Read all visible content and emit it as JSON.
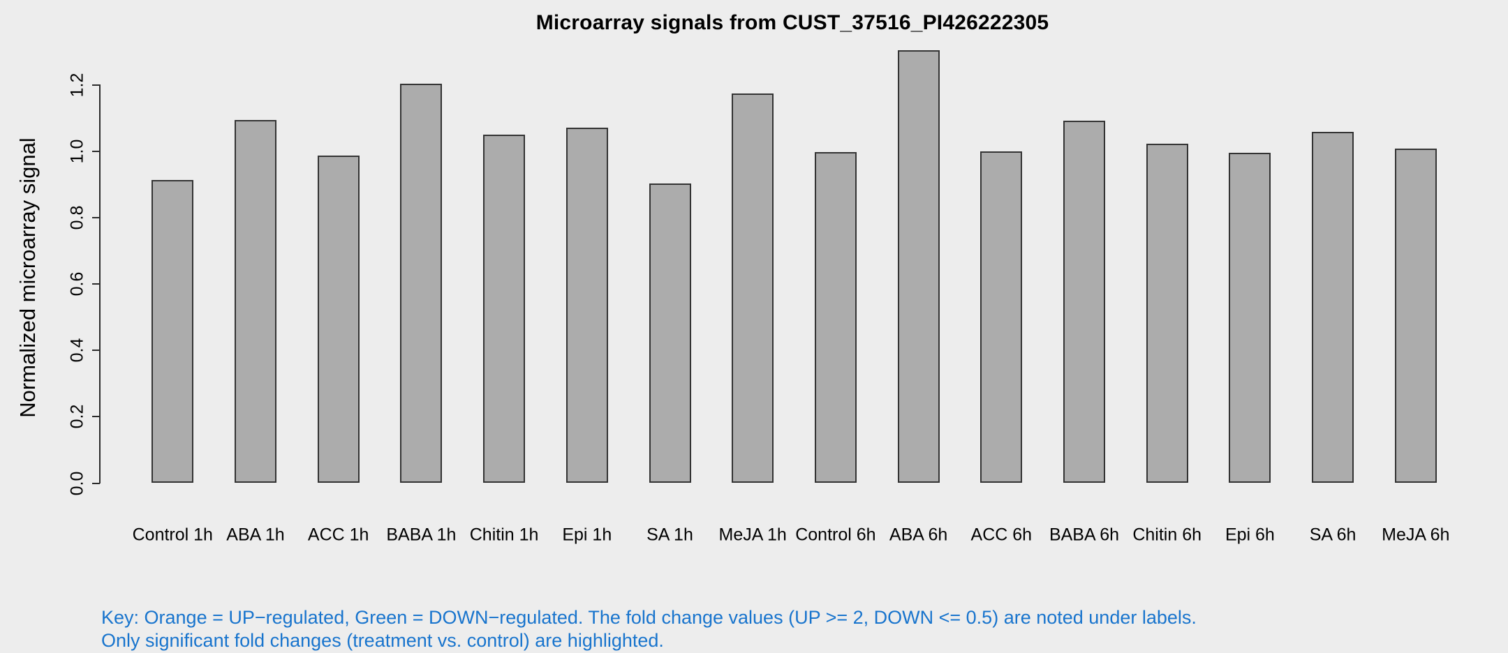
{
  "colors": {
    "background": "#EDEDED",
    "bar_fill": "#ACACAC",
    "bar_border": "#333333",
    "axis": "#2B2B2B",
    "text": "#000000",
    "footer_text": "#1874CD"
  },
  "chart_data": {
    "type": "bar",
    "title": "Microarray signals from CUST_37516_PI426222305",
    "xlabel": "",
    "ylabel": "Normalized microarray signal",
    "categories": [
      "Control 1h",
      "ABA 1h",
      "ACC 1h",
      "BABA 1h",
      "Chitin 1h",
      "Epi 1h",
      "SA 1h",
      "MeJA 1h",
      "Control 6h",
      "ABA 6h",
      "ACC 6h",
      "BABA 6h",
      "Chitin 6h",
      "Epi 6h",
      "SA 6h",
      "MeJA 6h"
    ],
    "values": [
      0.914,
      1.095,
      0.987,
      1.204,
      1.051,
      1.072,
      0.903,
      1.175,
      0.998,
      1.305,
      1.0,
      1.093,
      1.023,
      0.996,
      1.059,
      1.008
    ],
    "ytick_labels": [
      "0.0",
      "0.2",
      "0.4",
      "0.6",
      "0.8",
      "1.0",
      "1.2"
    ],
    "ylim": [
      0,
      1.32
    ],
    "grid": false,
    "legend_position": "none",
    "annotations": [
      "Key: Orange = UP−regulated, Green = DOWN−regulated. The fold change values (UP >= 2, DOWN <= 0.5) are noted under labels.",
      "Only significant fold changes (treatment vs. control) are highlighted."
    ]
  }
}
